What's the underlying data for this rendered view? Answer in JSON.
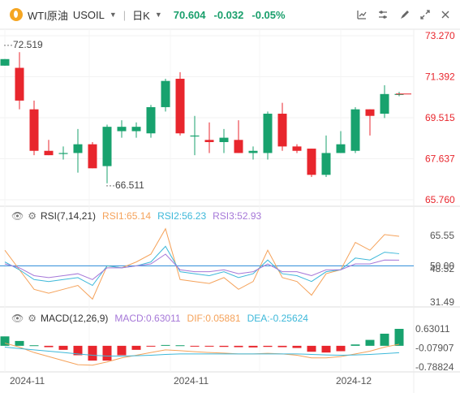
{
  "header": {
    "symbol": "WTI原油",
    "code": "USOIL",
    "period": "日K",
    "price": "70.604",
    "change": "-0.032",
    "change_pct": "-0.05%",
    "tools": [
      "price-indicator-icon",
      "settings-sliders-icon",
      "draw-tools-icon",
      "layout-icon",
      "fullscreen-icon",
      "close-icon"
    ]
  },
  "colors": {
    "up": "#18a26e",
    "down": "#e8262d",
    "rsi1": "#f5a25a",
    "rsi2": "#3db8d9",
    "rsi3": "#a678d8",
    "dif": "#f5a25a",
    "dea": "#3db8d9",
    "price_axis": "#e8262d"
  },
  "chart_data": [
    {
      "type": "candlestick",
      "title": "WTI原油 USOIL 日K",
      "y_ticks": [
        "73.270",
        "71.392",
        "69.515",
        "67.637",
        "65.760"
      ],
      "ylim": [
        65.76,
        73.27
      ],
      "annotations": {
        "high": "72.519",
        "low": "66.511"
      },
      "x_ticks": [
        "2024-11",
        "2024-11",
        "2024-12"
      ],
      "candles": [
        {
          "o": 71.9,
          "h": 72.2,
          "l": 71.9,
          "c": 72.2
        },
        {
          "o": 71.8,
          "h": 72.519,
          "l": 69.9,
          "c": 70.3
        },
        {
          "o": 69.9,
          "h": 70.3,
          "l": 67.8,
          "c": 68.0
        },
        {
          "o": 68.0,
          "h": 68.5,
          "l": 67.8,
          "c": 67.8
        },
        {
          "o": 67.9,
          "h": 68.2,
          "l": 67.6,
          "c": 67.9
        },
        {
          "o": 67.9,
          "h": 69.0,
          "l": 67.0,
          "c": 68.3
        },
        {
          "o": 68.3,
          "h": 68.4,
          "l": 67.2,
          "c": 67.2
        },
        {
          "o": 67.3,
          "h": 69.2,
          "l": 66.511,
          "c": 69.1
        },
        {
          "o": 68.9,
          "h": 69.4,
          "l": 68.6,
          "c": 69.1
        },
        {
          "o": 68.9,
          "h": 69.3,
          "l": 68.6,
          "c": 69.1
        },
        {
          "o": 68.8,
          "h": 70.1,
          "l": 68.6,
          "c": 70.0
        },
        {
          "o": 70.0,
          "h": 71.3,
          "l": 69.8,
          "c": 71.2
        },
        {
          "o": 71.3,
          "h": 71.6,
          "l": 68.7,
          "c": 68.8
        },
        {
          "o": 68.7,
          "h": 69.6,
          "l": 67.8,
          "c": 68.7
        },
        {
          "o": 68.5,
          "h": 69.3,
          "l": 67.9,
          "c": 68.4
        },
        {
          "o": 68.4,
          "h": 69.0,
          "l": 67.9,
          "c": 68.6
        },
        {
          "o": 68.5,
          "h": 69.4,
          "l": 67.9,
          "c": 67.9
        },
        {
          "o": 67.9,
          "h": 68.2,
          "l": 67.6,
          "c": 68.0
        },
        {
          "o": 67.9,
          "h": 69.8,
          "l": 67.6,
          "c": 69.7
        },
        {
          "o": 69.7,
          "h": 70.2,
          "l": 68.0,
          "c": 68.2
        },
        {
          "o": 68.2,
          "h": 68.3,
          "l": 67.9,
          "c": 68.0
        },
        {
          "o": 68.1,
          "h": 68.1,
          "l": 66.8,
          "c": 66.9
        },
        {
          "o": 66.9,
          "h": 68.7,
          "l": 66.8,
          "c": 67.9
        },
        {
          "o": 67.9,
          "h": 68.9,
          "l": 67.9,
          "c": 68.3
        },
        {
          "o": 68.0,
          "h": 70.0,
          "l": 67.9,
          "c": 69.9
        },
        {
          "o": 69.9,
          "h": 69.9,
          "l": 68.7,
          "c": 69.6
        },
        {
          "o": 69.7,
          "h": 71.0,
          "l": 69.5,
          "c": 70.6
        },
        {
          "o": 70.6,
          "h": 70.7,
          "l": 70.5,
          "c": 70.604
        }
      ]
    },
    {
      "type": "line",
      "name": "RSI",
      "legend": {
        "label": "RSI(7,14,21)",
        "rsi1": "RSI1:65.14",
        "rsi2": "RSI2:56.23",
        "rsi3": "RSI3:52.93"
      },
      "y_ticks": [
        "65.55",
        "50.00",
        "48.52",
        "31.49"
      ],
      "ylim": [
        31.49,
        65.55
      ],
      "series": [
        {
          "name": "RSI1",
          "values": [
            58,
            48,
            38,
            36,
            38,
            40,
            33,
            50,
            49,
            52,
            56,
            69,
            43,
            42,
            41,
            44,
            38,
            42,
            58,
            44,
            42,
            35,
            46,
            48,
            62,
            58,
            66,
            65.14
          ]
        },
        {
          "name": "RSI2",
          "values": [
            52,
            48,
            43,
            42,
            43,
            44,
            40,
            50,
            49,
            50,
            52,
            60,
            47,
            46,
            45,
            47,
            44,
            46,
            53,
            46,
            45,
            42,
            47,
            48,
            54,
            53,
            57,
            56.23
          ]
        },
        {
          "name": "RSI3",
          "values": [
            51,
            49,
            45,
            44,
            45,
            46,
            43,
            49,
            49,
            50,
            51,
            56,
            48,
            47,
            47,
            48,
            46,
            47,
            51,
            47,
            47,
            45,
            48,
            48,
            51,
            51,
            53,
            52.93
          ]
        }
      ]
    },
    {
      "type": "bar",
      "name": "MACD",
      "legend": {
        "label": "MACD(12,26,9)",
        "macd": "MACD:0.63011",
        "dif": "DIF:0.05881",
        "dea": "DEA:-0.25624"
      },
      "y_ticks": [
        "0.63011",
        "-0.07907",
        "-0.78824"
      ],
      "ylim": [
        -0.78824,
        0.63011
      ],
      "values": [
        0.35,
        0.18,
        0.02,
        -0.05,
        -0.15,
        -0.35,
        -0.55,
        -0.55,
        -0.35,
        -0.15,
        -0.02,
        0.03,
        0.02,
        -0.01,
        -0.03,
        -0.04,
        -0.05,
        -0.06,
        -0.04,
        -0.05,
        -0.08,
        -0.22,
        -0.25,
        -0.2,
        0.05,
        0.22,
        0.45,
        0.63011
      ],
      "series": [
        {
          "name": "DIF",
          "values": [
            0.1,
            -0.05,
            -0.25,
            -0.4,
            -0.55,
            -0.7,
            -0.72,
            -0.6,
            -0.45,
            -0.35,
            -0.25,
            -0.15,
            -0.18,
            -0.22,
            -0.25,
            -0.27,
            -0.3,
            -0.3,
            -0.28,
            -0.3,
            -0.35,
            -0.45,
            -0.45,
            -0.4,
            -0.3,
            -0.2,
            -0.05,
            0.05881
          ]
        },
        {
          "name": "DEA",
          "values": [
            -0.05,
            -0.1,
            -0.15,
            -0.2,
            -0.25,
            -0.3,
            -0.35,
            -0.38,
            -0.38,
            -0.37,
            -0.35,
            -0.32,
            -0.3,
            -0.3,
            -0.3,
            -0.3,
            -0.3,
            -0.3,
            -0.3,
            -0.3,
            -0.3,
            -0.32,
            -0.34,
            -0.35,
            -0.34,
            -0.32,
            -0.29,
            -0.25624
          ]
        }
      ]
    }
  ]
}
